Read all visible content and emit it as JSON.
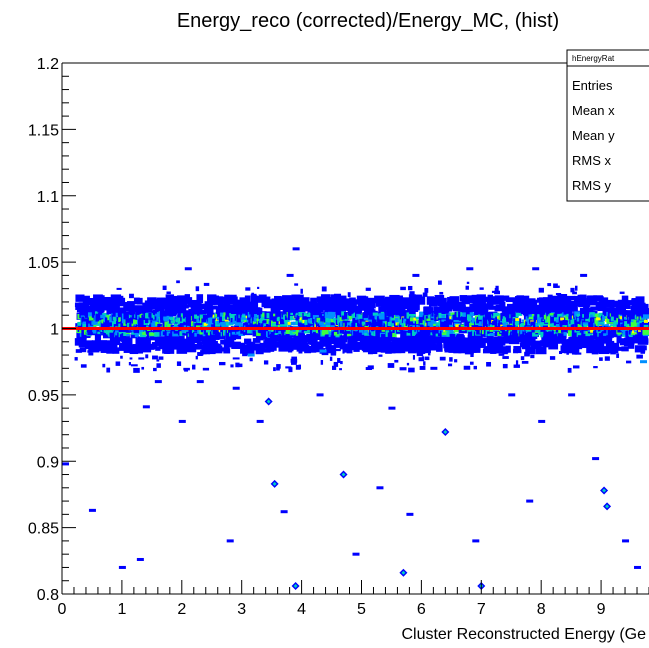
{
  "chart_data": {
    "type": "heatmap",
    "title": "Energy_reco (corrected)/Energy_MC, (hist)",
    "xlabel": "Cluster Reconstructed Energy (Ge",
    "ylabel": "",
    "xlim": [
      0,
      9.8
    ],
    "ylim": [
      0.8,
      1.2
    ],
    "x_ticks": [
      "0",
      "1",
      "2",
      "3",
      "4",
      "5",
      "6",
      "7",
      "8",
      "9"
    ],
    "y_ticks": [
      "0.8",
      "0.85",
      "0.9",
      "0.95",
      "1",
      "1.05",
      "1.1",
      "1.15",
      "1.2"
    ],
    "reference_line": {
      "y": 1.0,
      "color": "#ff0000"
    },
    "colors": {
      "low": "#0000ff",
      "mid_low": "#0090ff",
      "mid": "#00d0c0",
      "mid_high": "#40ff40",
      "high": "#ffff00",
      "reference": "#ff0000"
    },
    "band": {
      "center_y": 1.003,
      "core_halfwidth": 0.008,
      "outer_halfwidth": 0.02
    },
    "outliers": [
      {
        "x": 0.05,
        "y": 0.898,
        "z": 1
      },
      {
        "x": 0.5,
        "y": 0.863,
        "z": 1
      },
      {
        "x": 1.0,
        "y": 0.82,
        "z": 1
      },
      {
        "x": 1.3,
        "y": 0.826,
        "z": 1
      },
      {
        "x": 1.4,
        "y": 0.941,
        "z": 1
      },
      {
        "x": 1.6,
        "y": 0.96,
        "z": 1
      },
      {
        "x": 2.0,
        "y": 0.93,
        "z": 1
      },
      {
        "x": 2.3,
        "y": 0.96,
        "z": 1
      },
      {
        "x": 2.8,
        "y": 0.84,
        "z": 1
      },
      {
        "x": 2.9,
        "y": 0.955,
        "z": 1
      },
      {
        "x": 3.3,
        "y": 0.93,
        "z": 1
      },
      {
        "x": 3.45,
        "y": 0.945,
        "z": 3
      },
      {
        "x": 3.55,
        "y": 0.883,
        "z": 3
      },
      {
        "x": 3.7,
        "y": 0.862,
        "z": 1
      },
      {
        "x": 3.9,
        "y": 0.806,
        "z": 3
      },
      {
        "x": 3.15,
        "y": 0.98,
        "z": 2
      },
      {
        "x": 4.3,
        "y": 0.95,
        "z": 1
      },
      {
        "x": 4.35,
        "y": 0.983,
        "z": 2
      },
      {
        "x": 4.7,
        "y": 0.89,
        "z": 3
      },
      {
        "x": 4.9,
        "y": 0.83,
        "z": 1
      },
      {
        "x": 5.3,
        "y": 0.88,
        "z": 1
      },
      {
        "x": 5.5,
        "y": 0.94,
        "z": 1
      },
      {
        "x": 5.7,
        "y": 0.816,
        "z": 3
      },
      {
        "x": 5.8,
        "y": 0.86,
        "z": 1
      },
      {
        "x": 6.2,
        "y": 0.97,
        "z": 1
      },
      {
        "x": 6.4,
        "y": 0.922,
        "z": 3
      },
      {
        "x": 6.9,
        "y": 0.84,
        "z": 1
      },
      {
        "x": 7.0,
        "y": 0.806,
        "z": 3
      },
      {
        "x": 7.5,
        "y": 0.95,
        "z": 1
      },
      {
        "x": 7.8,
        "y": 0.87,
        "z": 1
      },
      {
        "x": 8.0,
        "y": 0.93,
        "z": 1
      },
      {
        "x": 8.5,
        "y": 0.95,
        "z": 1
      },
      {
        "x": 8.9,
        "y": 0.902,
        "z": 1
      },
      {
        "x": 9.05,
        "y": 0.878,
        "z": 3
      },
      {
        "x": 9.1,
        "y": 0.866,
        "z": 3
      },
      {
        "x": 9.4,
        "y": 0.84,
        "z": 1
      },
      {
        "x": 9.6,
        "y": 0.82,
        "z": 1
      },
      {
        "x": 9.7,
        "y": 0.975,
        "z": 2
      },
      {
        "x": 2.1,
        "y": 1.045,
        "z": 1
      },
      {
        "x": 3.8,
        "y": 1.04,
        "z": 1
      },
      {
        "x": 5.9,
        "y": 1.04,
        "z": 1
      },
      {
        "x": 6.8,
        "y": 1.045,
        "z": 1
      },
      {
        "x": 7.9,
        "y": 1.045,
        "z": 1
      },
      {
        "x": 3.9,
        "y": 1.06,
        "z": 1
      },
      {
        "x": 8.7,
        "y": 1.04,
        "z": 1
      },
      {
        "x": 0.8,
        "y": 0.99,
        "z": 1
      }
    ]
  },
  "stats_box": {
    "name": "hEnergyRat",
    "rows": [
      "Entries",
      "Mean x",
      "Mean y",
      "RMS x",
      "RMS y"
    ]
  }
}
